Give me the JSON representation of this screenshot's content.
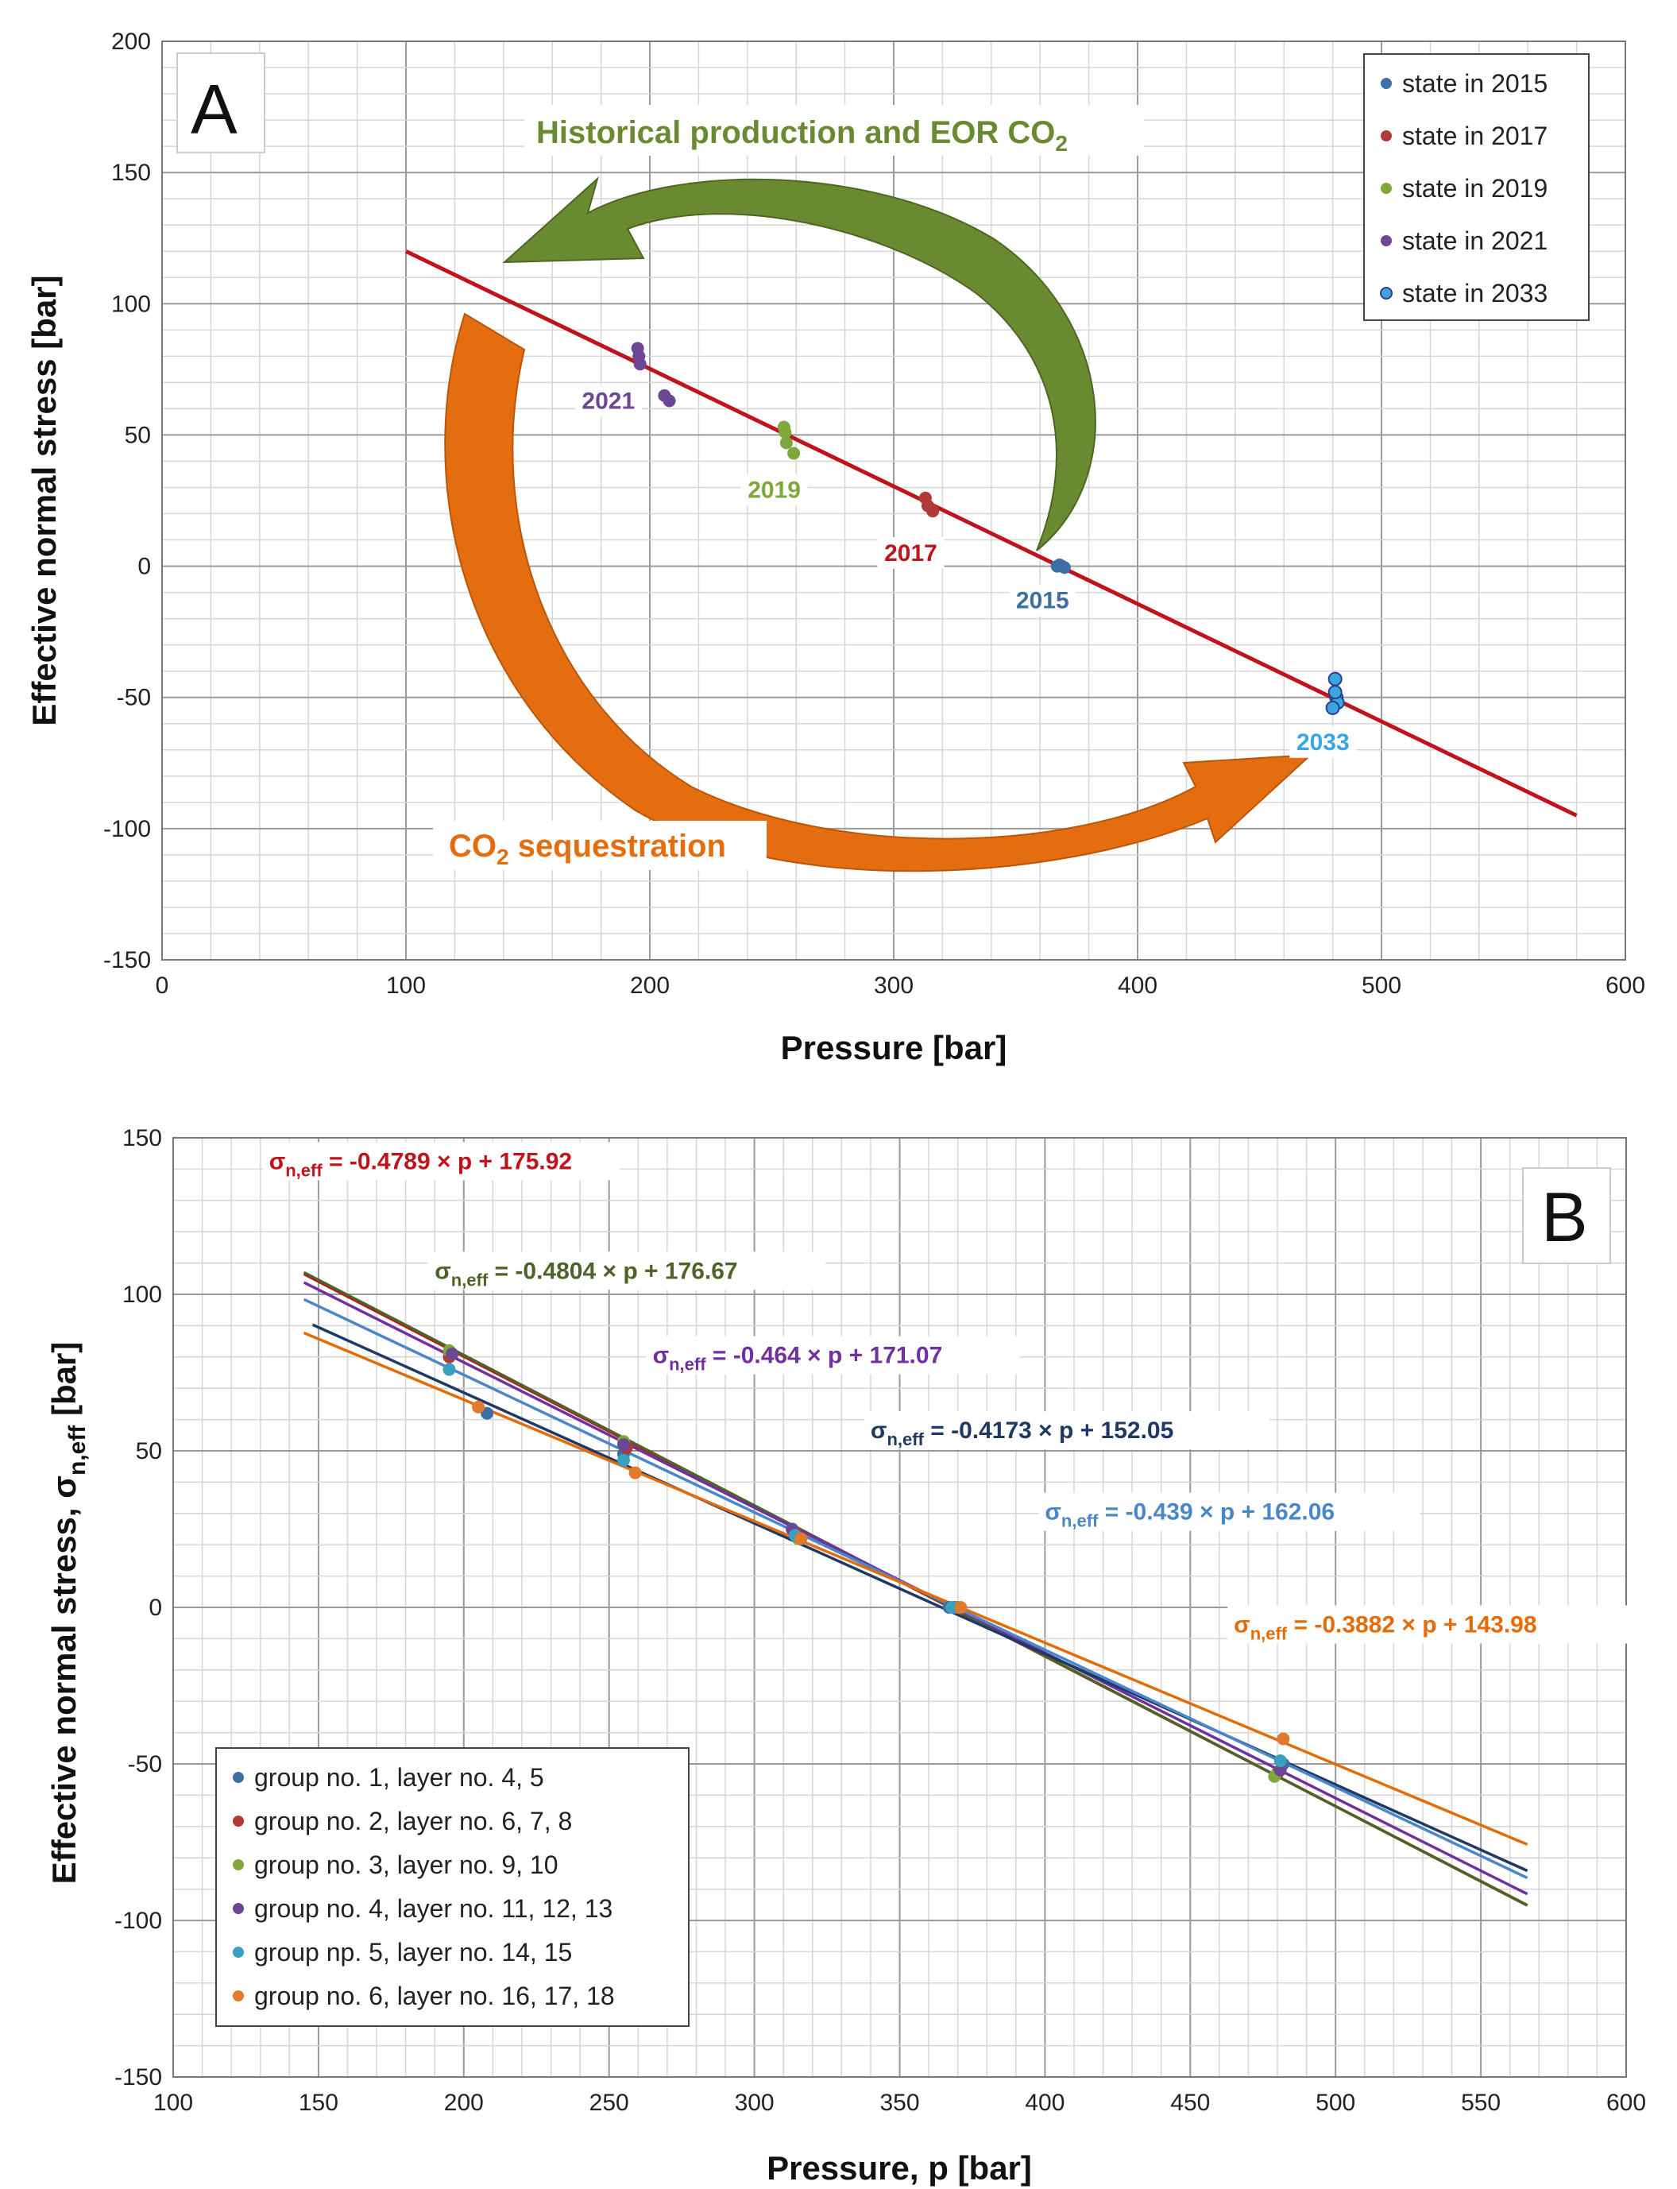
{
  "colors": {
    "s2015": "#3d6fa6",
    "s2017": "#b03a37",
    "s2019": "#7ea83b",
    "s2021": "#6b4794",
    "s2033": "#3aa7e0",
    "trend": "#c0141c",
    "green_arrow": "#6a8a32",
    "orange_arrow": "#e46d10",
    "g1": "#3d6fa6",
    "g2": "#b03a37",
    "g3": "#7ea83b",
    "g4": "#6b4794",
    "g5": "#3aa0c0",
    "g6": "#e3782f",
    "line_red": "#c0141c",
    "line_olive": "#4f6228",
    "line_purple": "#7030a0",
    "line_navy": "#1f3864",
    "line_blue": "#4a86c8",
    "line_orange": "#e36c09"
  },
  "chart_data": [
    {
      "panel": "A",
      "type": "scatter",
      "xlabel": "Pressure [bar]",
      "ylabel": "Effective normal stress [bar]",
      "xlim": [
        0,
        600
      ],
      "ylim": [
        -150,
        200
      ],
      "xticks": [
        0,
        100,
        200,
        300,
        400,
        500,
        600
      ],
      "yticks": [
        -150,
        -100,
        -50,
        0,
        50,
        100,
        150,
        200
      ],
      "legend": [
        "state in 2015",
        "state in 2017",
        "state in 2019",
        "state in 2021",
        "state in 2033"
      ],
      "series": [
        {
          "name": "state in 2015",
          "color_key": "s2015",
          "x": [
            367,
            368,
            369,
            370
          ],
          "y": [
            0,
            0.5,
            0,
            -0.5
          ]
        },
        {
          "name": "state in 2017",
          "color_key": "s2017",
          "x": [
            313,
            314,
            316
          ],
          "y": [
            26,
            23,
            21
          ]
        },
        {
          "name": "state in 2019",
          "color_key": "s2019",
          "x": [
            255,
            255.5,
            256,
            259
          ],
          "y": [
            53,
            51,
            47,
            43
          ]
        },
        {
          "name": "state in 2021",
          "color_key": "s2021",
          "x": [
            195,
            195.5,
            196,
            206,
            208
          ],
          "y": [
            83,
            80,
            77,
            65,
            63
          ]
        },
        {
          "name": "state in 2033",
          "color_key": "s2033",
          "x": [
            481,
            481.5,
            482,
            480,
            481
          ],
          "y": [
            -43,
            -50,
            -52,
            -54,
            -48
          ]
        }
      ],
      "trendline": {
        "x": [
          100,
          580
        ],
        "y": [
          120,
          -95
        ]
      },
      "year_labels": [
        {
          "text": "2021",
          "x": 183,
          "y": 60,
          "color_key": "s2021"
        },
        {
          "text": "2019",
          "x": 251,
          "y": 26,
          "color_key": "s2019"
        },
        {
          "text": "2017",
          "x": 307,
          "y": 2,
          "color_key": "trend"
        },
        {
          "text": "2015",
          "x": 361,
          "y": -16,
          "color_key": "s2015"
        },
        {
          "text": "2033",
          "x": 476,
          "y": -70,
          "color_key": "s2033"
        }
      ],
      "panel_label": "A",
      "annotations": {
        "green": "Historical production and EOR CO",
        "green_sub": "2",
        "orange_pre": "CO",
        "orange_sub": "2",
        "orange_post": " sequestration"
      }
    },
    {
      "panel": "B",
      "type": "scatter",
      "xlabel": "Pressure, p [bar]",
      "ylabel": "Effective normal stress, σ",
      "ylabel_sub": "n,eff",
      "ylabel_post": " [bar]",
      "xlim": [
        100,
        600
      ],
      "ylim": [
        -150,
        150
      ],
      "xticks": [
        100,
        150,
        200,
        250,
        300,
        350,
        400,
        450,
        500,
        550,
        600
      ],
      "yticks": [
        -150,
        -100,
        -50,
        0,
        50,
        100,
        150
      ],
      "legend": [
        "group no. 1, layer no. 4, 5",
        "group no. 2, layer no. 6, 7, 8",
        "group no. 3, layer no. 9, 10",
        "group no. 4, layer no. 11, 12, 13",
        "group np. 5, layer no. 14, 15",
        "group no. 6, layer no. 16, 17, 18"
      ],
      "series": [
        {
          "name": "group no. 1, layer no. 4, 5",
          "color_key": "g1",
          "x": [
            208,
            255,
            313,
            367,
            482
          ],
          "y": [
            62,
            49,
            25,
            0,
            -50
          ]
        },
        {
          "name": "group no. 2, layer no. 6, 7, 8",
          "color_key": "g2",
          "x": [
            195,
            256,
            314,
            369,
            480
          ],
          "y": [
            80,
            51,
            24,
            0,
            -53
          ]
        },
        {
          "name": "group no. 3, layer no. 9, 10",
          "color_key": "g3",
          "x": [
            195,
            255,
            315,
            370,
            479
          ],
          "y": [
            82,
            53,
            22,
            0,
            -54
          ]
        },
        {
          "name": "group no. 4, layer no. 11, 12, 13",
          "color_key": "g4",
          "x": [
            196,
            255,
            313,
            368,
            481
          ],
          "y": [
            81,
            52,
            25,
            0,
            -52
          ]
        },
        {
          "name": "group np. 5, layer no. 14, 15",
          "color_key": "g5",
          "x": [
            195,
            255,
            314,
            368,
            481
          ],
          "y": [
            76,
            47,
            23,
            0,
            -49
          ]
        },
        {
          "name": "group no. 6, layer no. 16, 17, 18",
          "color_key": "g6",
          "x": [
            205,
            259,
            316,
            371,
            482
          ],
          "y": [
            64,
            43,
            22,
            0,
            -42
          ]
        }
      ],
      "fits": [
        {
          "label": "= -0.4789 × p + 175.92",
          "slope": -0.4789,
          "intercept": 175.92,
          "x0": 145,
          "x1": 566,
          "color_key": "line_red"
        },
        {
          "label": "= -0.4804 × p + 176.67",
          "slope": -0.4804,
          "intercept": 176.67,
          "x0": 145,
          "x1": 566,
          "color_key": "line_olive"
        },
        {
          "label": "= -0.464 × p + 171.07",
          "slope": -0.464,
          "intercept": 171.07,
          "x0": 145,
          "x1": 566,
          "color_key": "line_purple"
        },
        {
          "label": "= -0.4173 × p + 152.05",
          "slope": -0.4173,
          "intercept": 152.05,
          "x0": 148,
          "x1": 566,
          "color_key": "line_navy"
        },
        {
          "label": "= -0.439 × p + 162.06",
          "slope": -0.439,
          "intercept": 162.06,
          "x0": 145,
          "x1": 566,
          "color_key": "line_blue"
        },
        {
          "label": "= -0.3882 × p + 143.98",
          "slope": -0.3882,
          "intercept": 143.98,
          "x0": 145,
          "x1": 566,
          "color_key": "line_orange"
        }
      ],
      "sigma_symbol": "σ",
      "sigma_sub": "n,eff",
      "panel_label": "B"
    }
  ]
}
